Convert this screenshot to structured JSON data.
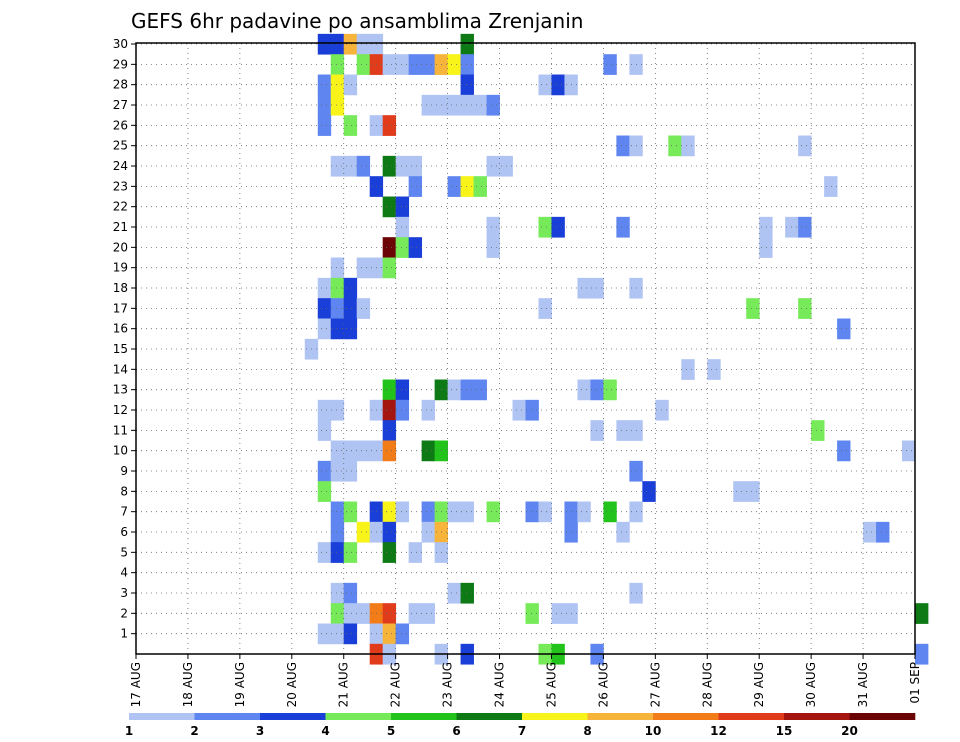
{
  "chart_data": {
    "type": "heatmap",
    "title": "GEFS 6hr padavine po ansamblima Zrenjanin",
    "xlabel": "",
    "ylabel": "",
    "x_ticks": [
      "17 AUG",
      "18 AUG",
      "19 AUG",
      "20 AUG",
      "21 AUG",
      "22 AUG",
      "23 AUG",
      "24 AUG",
      "25 AUG",
      "26 AUG",
      "27 AUG",
      "28 AUG",
      "29 AUG",
      "30 AUG",
      "31 AUG",
      "01 SEP"
    ],
    "y_ticks": [
      "1",
      "2",
      "3",
      "4",
      "5",
      "6",
      "7",
      "8",
      "9",
      "10",
      "11",
      "12",
      "13",
      "14",
      "15",
      "16",
      "17",
      "18",
      "19",
      "20",
      "21",
      "22",
      "23",
      "24",
      "25",
      "26",
      "27",
      "28",
      "29",
      "30"
    ],
    "x_range_days": [
      0,
      15
    ],
    "y_range": [
      0,
      30
    ],
    "grid": true,
    "colorbar": {
      "labels": [
        "1",
        "2",
        "3",
        "4",
        "5",
        "6",
        "7",
        "8",
        "10",
        "12",
        "15",
        "20"
      ],
      "colors": [
        "#b0c4f4",
        "#5f86f0",
        "#1a3fd9",
        "#77ea5a",
        "#22c41c",
        "#0e7a16",
        "#f8f41a",
        "#f6b43a",
        "#f27c18",
        "#e03b1a",
        "#a5150f",
        "#6a0405"
      ],
      "placement": "bottom"
    },
    "cells": [
      [
        3.5,
        30,
        2
      ],
      [
        3.75,
        30,
        2
      ],
      [
        4,
        30,
        7
      ],
      [
        4.25,
        30,
        0
      ],
      [
        4.5,
        30,
        0
      ],
      [
        6.25,
        30,
        5
      ],
      [
        3.75,
        29,
        3
      ],
      [
        4.25,
        29,
        3
      ],
      [
        4.5,
        29,
        9
      ],
      [
        4.75,
        29,
        0
      ],
      [
        5,
        29,
        0
      ],
      [
        5.25,
        29,
        1
      ],
      [
        5.5,
        29,
        1
      ],
      [
        5.75,
        29,
        7
      ],
      [
        6,
        29,
        6
      ],
      [
        6.25,
        29,
        1
      ],
      [
        9,
        29,
        1
      ],
      [
        9.5,
        29,
        0
      ],
      [
        3.5,
        28,
        1
      ],
      [
        3.75,
        28,
        6
      ],
      [
        4,
        28,
        0
      ],
      [
        6.25,
        28,
        2
      ],
      [
        7.75,
        28,
        0
      ],
      [
        8,
        28,
        2
      ],
      [
        8.25,
        28,
        0
      ],
      [
        3.5,
        27,
        1
      ],
      [
        3.75,
        27,
        6
      ],
      [
        5.5,
        27,
        0
      ],
      [
        5.75,
        27,
        0
      ],
      [
        6,
        27,
        0
      ],
      [
        6.25,
        27,
        0
      ],
      [
        6.5,
        27,
        0
      ],
      [
        6.75,
        27,
        1
      ],
      [
        3.5,
        26,
        1
      ],
      [
        4,
        26,
        3
      ],
      [
        4.5,
        26,
        0
      ],
      [
        4.75,
        26,
        9
      ],
      [
        9.25,
        25,
        1
      ],
      [
        9.5,
        25,
        0
      ],
      [
        10.25,
        25,
        3
      ],
      [
        10.5,
        25,
        0
      ],
      [
        12.75,
        25,
        0
      ],
      [
        3.75,
        24,
        0
      ],
      [
        4,
        24,
        0
      ],
      [
        4.25,
        24,
        1
      ],
      [
        4.75,
        24,
        5
      ],
      [
        5,
        24,
        0
      ],
      [
        5.25,
        24,
        0
      ],
      [
        6.75,
        24,
        0
      ],
      [
        7,
        24,
        0
      ],
      [
        4.5,
        23,
        2
      ],
      [
        5.25,
        23,
        1
      ],
      [
        6,
        23,
        1
      ],
      [
        6.25,
        23,
        6
      ],
      [
        6.5,
        23,
        3
      ],
      [
        13.25,
        23,
        0
      ],
      [
        4.75,
        22,
        5
      ],
      [
        5,
        22,
        2
      ],
      [
        5,
        21,
        0
      ],
      [
        6.75,
        21,
        0
      ],
      [
        7.75,
        21,
        3
      ],
      [
        8,
        21,
        2
      ],
      [
        9.25,
        21,
        1
      ],
      [
        12,
        21,
        0
      ],
      [
        12.5,
        21,
        0
      ],
      [
        12.75,
        21,
        1
      ],
      [
        4.75,
        20,
        11
      ],
      [
        5,
        20,
        3
      ],
      [
        5.25,
        20,
        2
      ],
      [
        6.75,
        20,
        0
      ],
      [
        12,
        20,
        0
      ],
      [
        3.75,
        19,
        0
      ],
      [
        4.25,
        19,
        0
      ],
      [
        4.5,
        19,
        0
      ],
      [
        4.75,
        19,
        3
      ],
      [
        3.5,
        18,
        0
      ],
      [
        3.75,
        18,
        3
      ],
      [
        4,
        18,
        2
      ],
      [
        8.5,
        18,
        0
      ],
      [
        8.75,
        18,
        0
      ],
      [
        9.5,
        18,
        0
      ],
      [
        3.5,
        17,
        2
      ],
      [
        3.75,
        17,
        1
      ],
      [
        4,
        17,
        2
      ],
      [
        4.25,
        17,
        0
      ],
      [
        7.75,
        17,
        0
      ],
      [
        11.75,
        17,
        3
      ],
      [
        12.75,
        17,
        3
      ],
      [
        3.5,
        16,
        0
      ],
      [
        3.75,
        16,
        2
      ],
      [
        4,
        16,
        2
      ],
      [
        13.5,
        16,
        1
      ],
      [
        3.25,
        15,
        0
      ],
      [
        10.5,
        14,
        0
      ],
      [
        11,
        14,
        0
      ],
      [
        4.75,
        13,
        4
      ],
      [
        5,
        13,
        2
      ],
      [
        5.75,
        13,
        5
      ],
      [
        6,
        13,
        0
      ],
      [
        6.25,
        13,
        1
      ],
      [
        6.5,
        13,
        1
      ],
      [
        8.5,
        13,
        0
      ],
      [
        8.75,
        13,
        1
      ],
      [
        9,
        13,
        3
      ],
      [
        3.5,
        12,
        0
      ],
      [
        3.75,
        12,
        0
      ],
      [
        4.5,
        12,
        0
      ],
      [
        4.75,
        12,
        10
      ],
      [
        5,
        12,
        1
      ],
      [
        5.5,
        12,
        0
      ],
      [
        7.25,
        12,
        0
      ],
      [
        7.5,
        12,
        1
      ],
      [
        10,
        12,
        0
      ],
      [
        3.5,
        11,
        0
      ],
      [
        4.75,
        11,
        2
      ],
      [
        8.75,
        11,
        0
      ],
      [
        9.25,
        11,
        0
      ],
      [
        9.5,
        11,
        0
      ],
      [
        13,
        11,
        3
      ],
      [
        3.75,
        10,
        0
      ],
      [
        4,
        10,
        0
      ],
      [
        4.25,
        10,
        0
      ],
      [
        4.5,
        10,
        0
      ],
      [
        4.75,
        10,
        8
      ],
      [
        5.5,
        10,
        5
      ],
      [
        5.75,
        10,
        4
      ],
      [
        13.5,
        10,
        1
      ],
      [
        14.75,
        10,
        0
      ],
      [
        3.5,
        9,
        1
      ],
      [
        3.75,
        9,
        0
      ],
      [
        4,
        9,
        0
      ],
      [
        9.5,
        9,
        1
      ],
      [
        3.5,
        8,
        3
      ],
      [
        9.75,
        8,
        2
      ],
      [
        11.5,
        8,
        0
      ],
      [
        11.75,
        8,
        0
      ],
      [
        3.75,
        7,
        1
      ],
      [
        4,
        7,
        3
      ],
      [
        4.5,
        7,
        2
      ],
      [
        4.75,
        7,
        6
      ],
      [
        5,
        7,
        0
      ],
      [
        5.5,
        7,
        1
      ],
      [
        5.75,
        7,
        3
      ],
      [
        6,
        7,
        0
      ],
      [
        6.25,
        7,
        0
      ],
      [
        6.75,
        7,
        3
      ],
      [
        7.5,
        7,
        1
      ],
      [
        7.75,
        7,
        0
      ],
      [
        8.25,
        7,
        1
      ],
      [
        8.5,
        7,
        0
      ],
      [
        9,
        7,
        4
      ],
      [
        9.5,
        7,
        0
      ],
      [
        3.75,
        6,
        1
      ],
      [
        4.25,
        6,
        6
      ],
      [
        4.5,
        6,
        0
      ],
      [
        4.75,
        6,
        2
      ],
      [
        5.5,
        6,
        0
      ],
      [
        5.75,
        6,
        7
      ],
      [
        8.25,
        6,
        1
      ],
      [
        9.25,
        6,
        0
      ],
      [
        14,
        6,
        0
      ],
      [
        14.25,
        6,
        1
      ],
      [
        3.5,
        5,
        0
      ],
      [
        3.75,
        5,
        2
      ],
      [
        4,
        5,
        3
      ],
      [
        4.75,
        5,
        5
      ],
      [
        5.25,
        5,
        0
      ],
      [
        5.75,
        5,
        0
      ],
      [
        3.75,
        3,
        0
      ],
      [
        4,
        3,
        1
      ],
      [
        6,
        3,
        0
      ],
      [
        6.25,
        3,
        5
      ],
      [
        9.5,
        3,
        0
      ],
      [
        3.75,
        2,
        3
      ],
      [
        4,
        2,
        0
      ],
      [
        4.25,
        2,
        0
      ],
      [
        4.5,
        2,
        8
      ],
      [
        4.75,
        2,
        9
      ],
      [
        5.25,
        2,
        0
      ],
      [
        5.5,
        2,
        0
      ],
      [
        7.5,
        2,
        3
      ],
      [
        8,
        2,
        0
      ],
      [
        8.25,
        2,
        0
      ],
      [
        15,
        2,
        5
      ],
      [
        3.5,
        1,
        0
      ],
      [
        3.75,
        1,
        0
      ],
      [
        4,
        1,
        2
      ],
      [
        4.5,
        1,
        0
      ],
      [
        4.75,
        1,
        7
      ],
      [
        5,
        1,
        1
      ],
      [
        4.5,
        0,
        9
      ],
      [
        4.75,
        0,
        0
      ],
      [
        5.75,
        0,
        0
      ],
      [
        6.25,
        0,
        2
      ],
      [
        7.75,
        0,
        3
      ],
      [
        8,
        0,
        4
      ],
      [
        8.75,
        0,
        1
      ],
      [
        15,
        0,
        1
      ]
    ]
  }
}
